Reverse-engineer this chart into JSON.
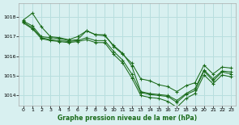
{
  "title": "Graphe pression niveau de la mer (hPa)",
  "background_color": "#d8f0f0",
  "grid_color": "#b8dede",
  "line_color": "#1a6b1a",
  "xlim": [
    -0.5,
    23.5
  ],
  "ylim": [
    1013.5,
    1018.7
  ],
  "yticks": [
    1014,
    1015,
    1016,
    1017,
    1018
  ],
  "xticks": [
    0,
    1,
    2,
    3,
    4,
    5,
    6,
    7,
    8,
    9,
    10,
    11,
    12,
    13,
    14,
    15,
    16,
    17,
    18,
    19,
    20,
    21,
    22,
    23
  ],
  "series": [
    {
      "x": [
        0,
        1,
        2,
        3,
        4,
        5,
        6,
        7,
        8,
        9,
        10,
        11,
        12,
        13,
        14,
        15,
        16,
        17,
        18,
        19,
        20,
        21,
        22,
        23
      ],
      "y": [
        1017.85,
        1018.2,
        1017.5,
        1017.0,
        1016.95,
        1016.85,
        1017.0,
        1017.3,
        1017.1,
        1017.05,
        1016.55,
        1016.15,
        1015.5,
        1014.2,
        1014.1,
        1014.05,
        1014.0,
        1013.75,
        1014.1,
        1014.35,
        1015.3,
        1014.85,
        1015.25,
        1015.2
      ]
    },
    {
      "x": [
        0,
        1,
        2,
        3,
        4,
        5,
        6,
        7,
        8,
        9,
        10,
        11,
        12,
        13,
        14,
        15,
        16,
        17,
        18,
        19,
        20,
        21,
        22,
        23
      ],
      "y": [
        1017.8,
        1017.55,
        1017.0,
        1016.95,
        1016.9,
        1016.8,
        1016.85,
        1017.3,
        1017.1,
        1017.1,
        1016.5,
        1016.1,
        1015.65,
        1014.85,
        1014.75,
        1014.55,
        1014.45,
        1014.2,
        1014.5,
        1014.65,
        1015.55,
        1015.1,
        1015.45,
        1015.4
      ]
    },
    {
      "x": [
        0,
        1,
        2,
        3,
        4,
        5,
        6,
        7,
        8,
        9,
        10,
        11,
        12,
        13,
        14,
        15,
        16,
        17,
        18,
        19,
        20,
        21,
        22,
        23
      ],
      "y": [
        1017.75,
        1017.45,
        1016.95,
        1016.85,
        1016.8,
        1016.75,
        1016.8,
        1016.95,
        1016.8,
        1016.8,
        1016.25,
        1015.8,
        1015.1,
        1014.15,
        1014.05,
        1014.0,
        1013.95,
        1013.65,
        1014.05,
        1014.25,
        1015.25,
        1014.75,
        1015.2,
        1015.1
      ]
    },
    {
      "x": [
        0,
        1,
        2,
        3,
        4,
        5,
        6,
        7,
        8,
        9,
        10,
        11,
        12,
        13,
        14,
        15,
        16,
        17,
        18,
        19,
        20,
        21,
        22,
        23
      ],
      "y": [
        1017.7,
        1017.4,
        1016.9,
        1016.8,
        1016.75,
        1016.7,
        1016.75,
        1016.85,
        1016.7,
        1016.7,
        1016.1,
        1015.65,
        1014.9,
        1014.0,
        1013.9,
        1013.85,
        1013.7,
        1013.4,
        1013.85,
        1014.1,
        1015.05,
        1014.6,
        1015.05,
        1014.95
      ]
    }
  ]
}
